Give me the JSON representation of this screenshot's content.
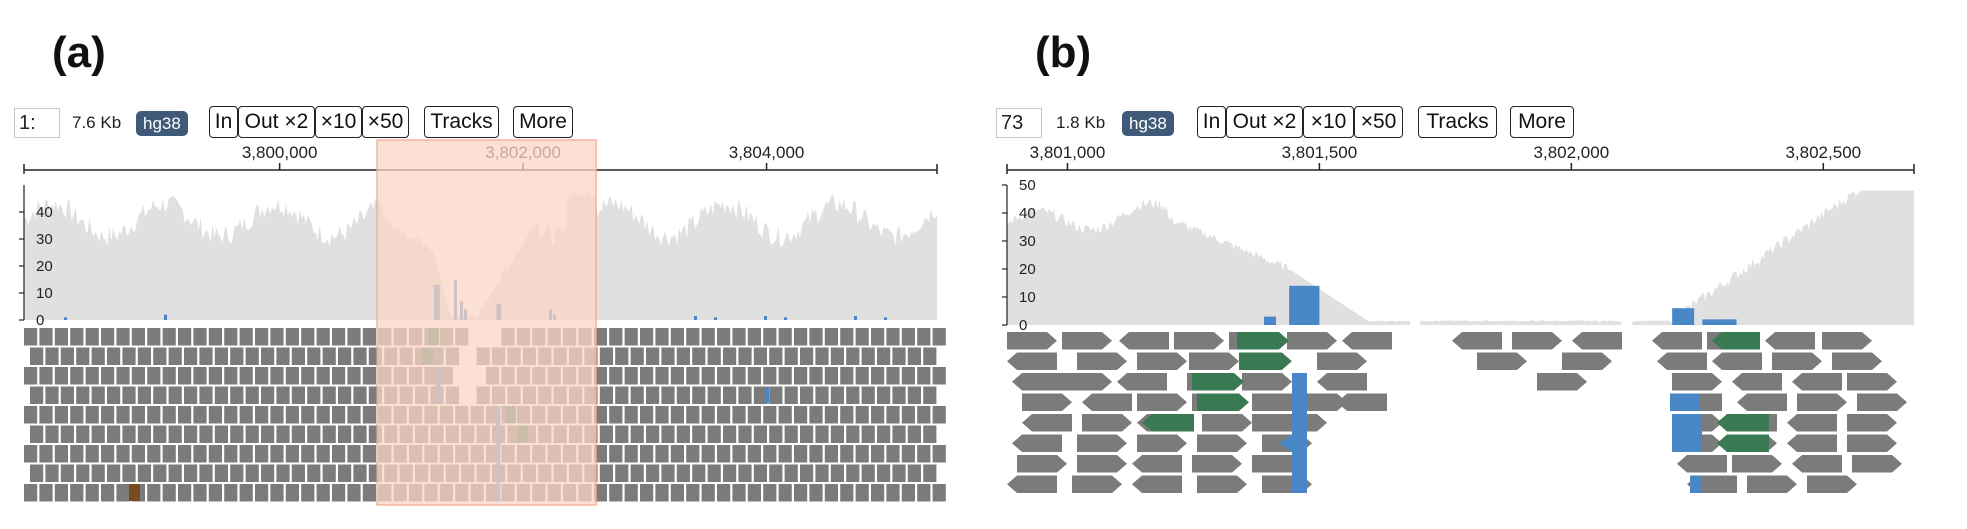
{
  "panels": [
    {
      "label": "(a)",
      "locus_value": "1:",
      "span": "7.6 Kb",
      "genome": "hg38",
      "buttons": [
        "In",
        "Out ×2",
        "×10",
        "×50",
        "Tracks",
        "More"
      ],
      "ruler_ticks": [
        {
          "label": "3,800,000",
          "pos": 3800000
        },
        {
          "label": "3,802,000",
          "pos": 3802000
        },
        {
          "label": "3,804,000",
          "pos": 3804000
        }
      ],
      "view_range": [
        3797900,
        3805400
      ],
      "coverage_axis": {
        "ticks": [
          "40",
          "30",
          "20",
          "10",
          "0"
        ],
        "max": 50
      },
      "highlight_range": [
        3800800,
        3802600
      ],
      "colors": {
        "coverage": "#e0e0e0",
        "read": "#7b7b7b",
        "highlight": "#fcd5c6",
        "mismatch_blue": "#4a87c6",
        "mismatch_green": "#3a7a53",
        "mismatch_brown": "#7a4a1f"
      }
    },
    {
      "label": "(b)",
      "locus_value": "73",
      "span": "1.8 Kb",
      "genome": "hg38",
      "buttons": [
        "In",
        "Out ×2",
        "×10",
        "×50",
        "Tracks",
        "More"
      ],
      "ruler_ticks": [
        {
          "label": "3,801,000",
          "pos": 3801000
        },
        {
          "label": "3,801,500",
          "pos": 3801500
        },
        {
          "label": "3,802,000",
          "pos": 3802000
        },
        {
          "label": "3,802,500",
          "pos": 3802500
        }
      ],
      "view_range": [
        3800880,
        3802680
      ],
      "coverage_axis": {
        "ticks": [
          "50",
          "40",
          "30",
          "20",
          "10",
          "0"
        ],
        "max": 50
      },
      "colors": {
        "coverage": "#e0e0e0",
        "read": "#7b7b7b",
        "mismatch_blue": "#4a87c6",
        "mismatch_green": "#3a7a53"
      }
    }
  ]
}
